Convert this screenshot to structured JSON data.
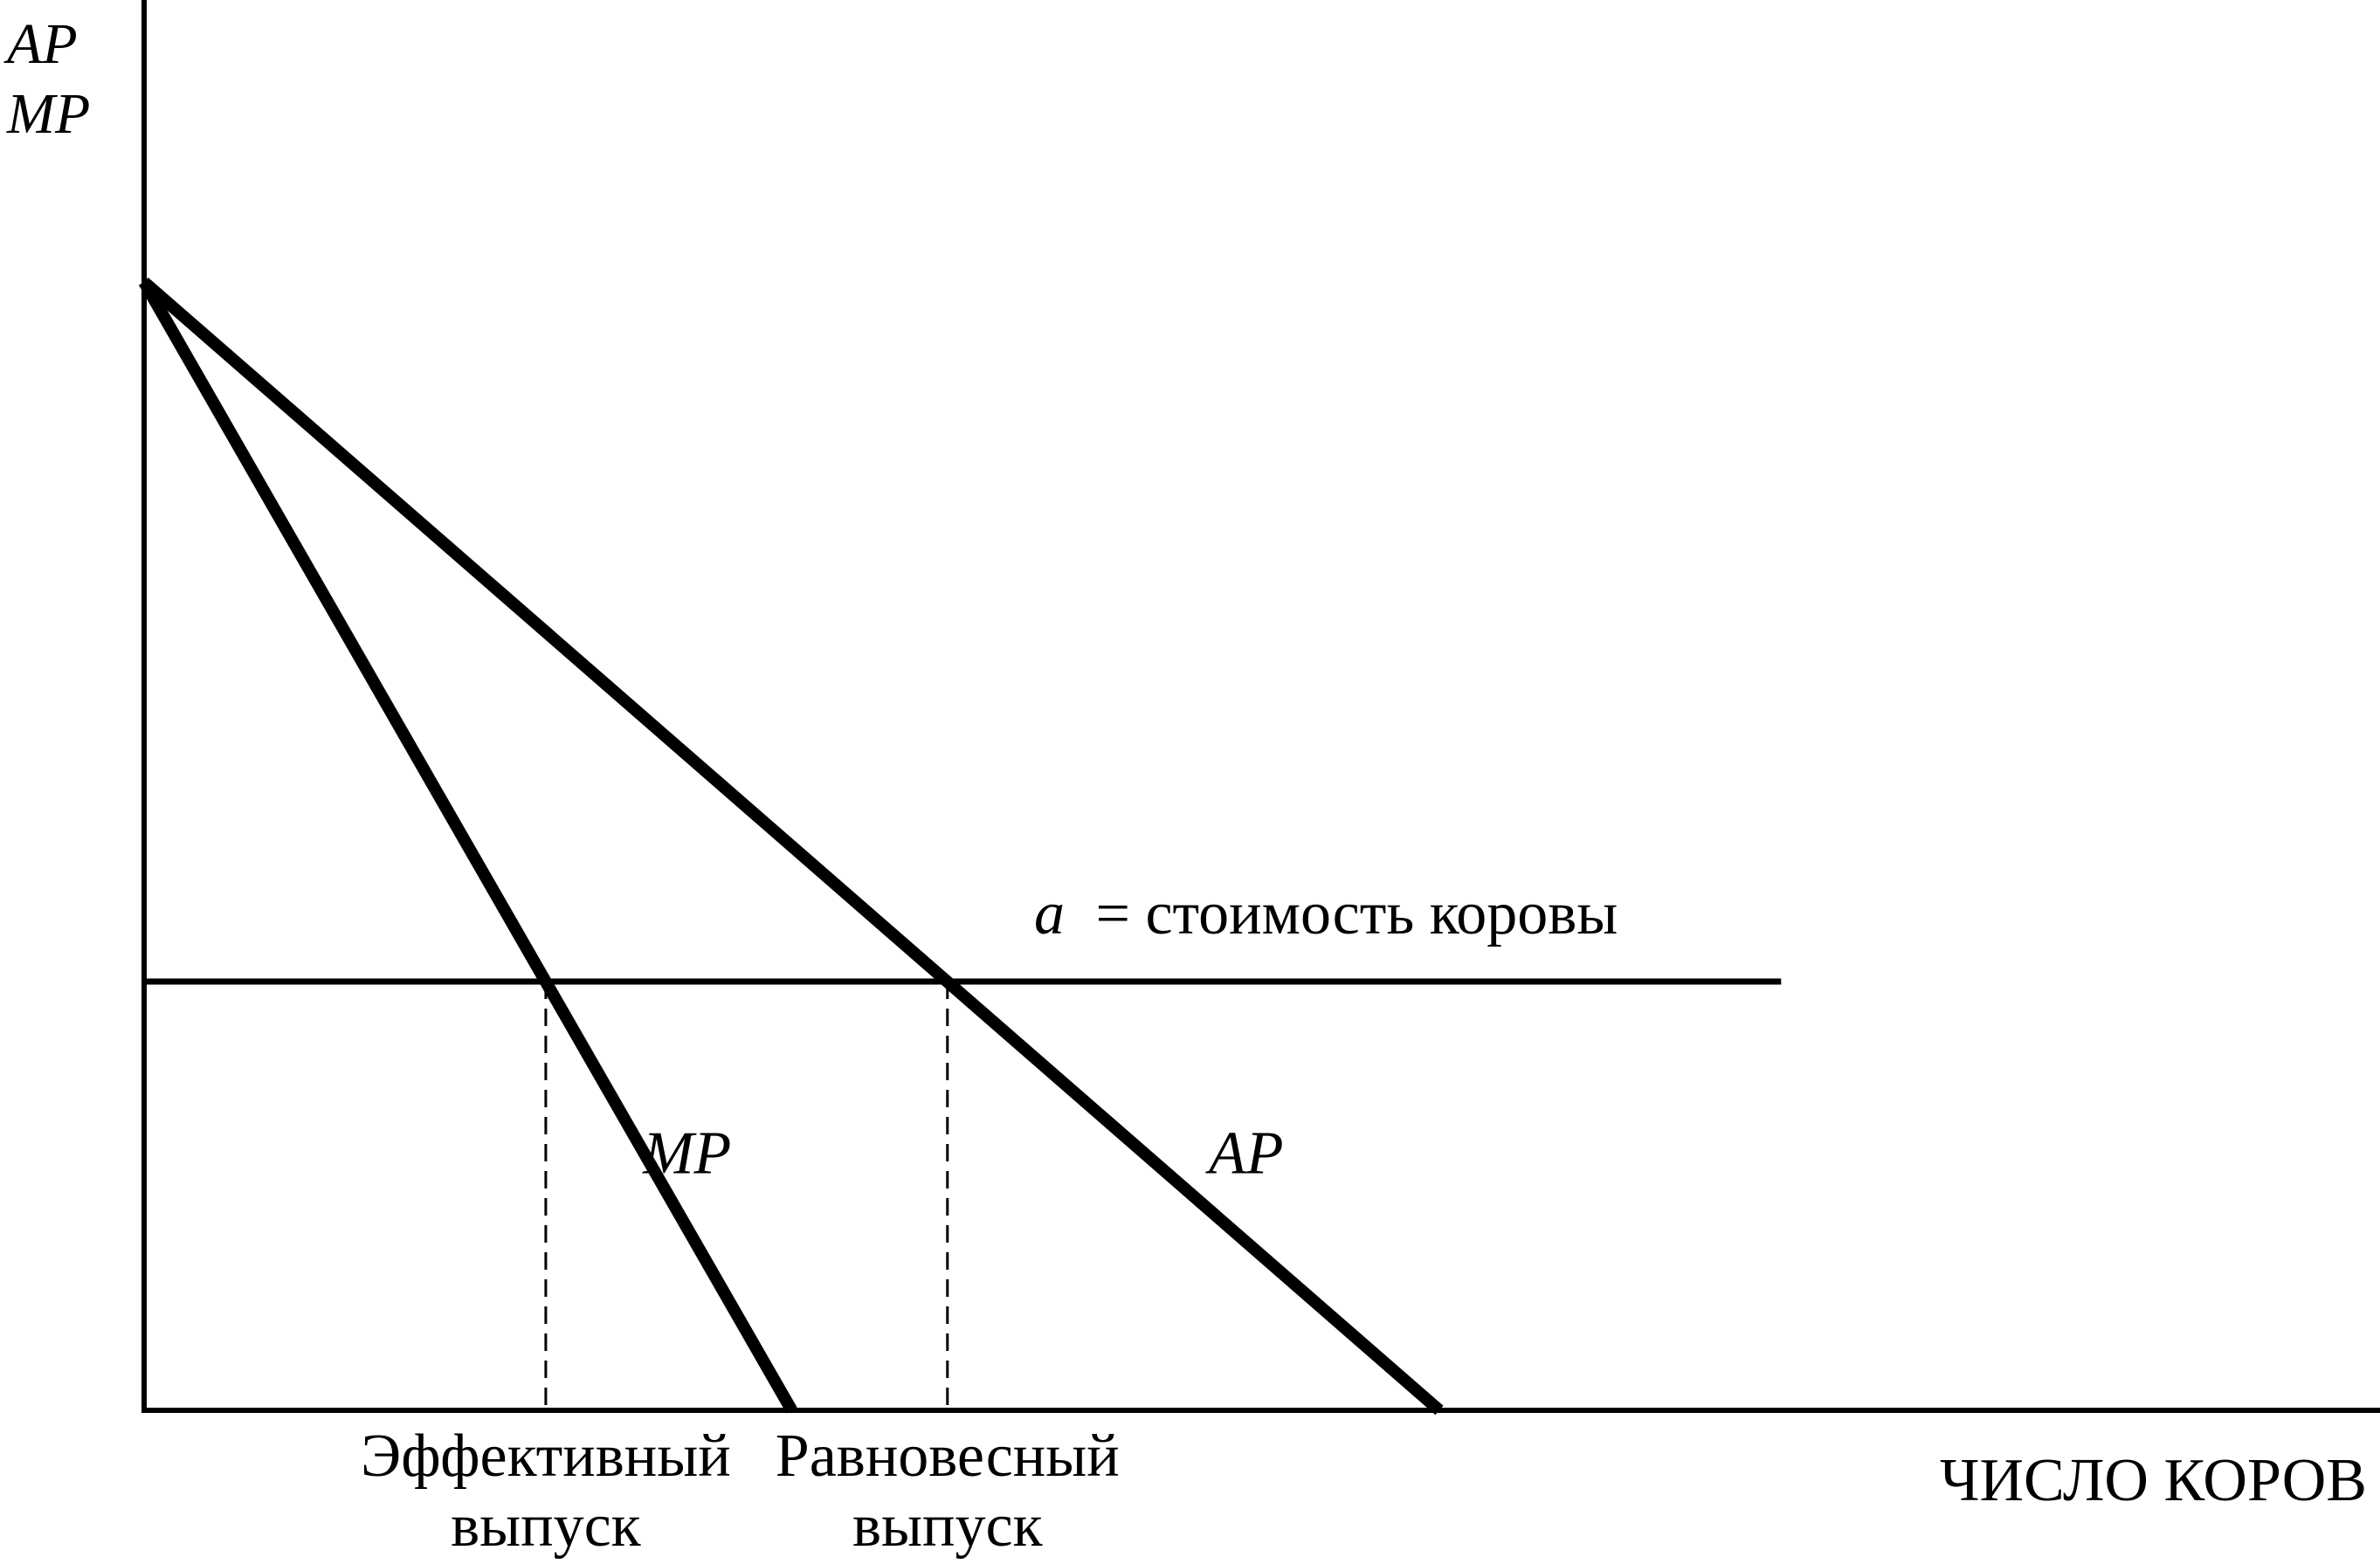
{
  "chart_data": {
    "type": "line",
    "title": "",
    "ylabel_lines": [
      "AP",
      "MP"
    ],
    "xlabel": "ЧИСЛО КОРОВ",
    "series": [
      {
        "name": "MP",
        "points": [
          [
            0,
            10
          ],
          [
            8.11,
            0
          ]
        ]
      },
      {
        "name": "AP",
        "points": [
          [
            0,
            10
          ],
          [
            16.22,
            0
          ]
        ]
      }
    ],
    "cost_line": {
      "label_var": "a",
      "label_text": "= стоимость коровы",
      "y": 3.8,
      "x_end": 20.5
    },
    "reference_points": [
      {
        "x": 5.03,
        "label_lines": [
          "Эффективный",
          "выпуск"
        ]
      },
      {
        "x": 10.06,
        "label_lines": [
          "Равновесный",
          "выпуск"
        ]
      }
    ],
    "xlim": [
      0,
      28
    ],
    "ylim": [
      0,
      12.5
    ],
    "ticks": "none",
    "grid": false,
    "legend": "none",
    "colors": {
      "lines": "#000000",
      "background": "#ffffff"
    }
  }
}
